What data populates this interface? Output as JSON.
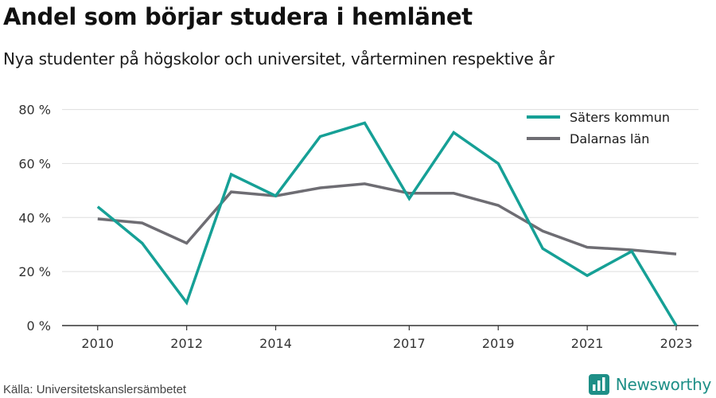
{
  "header": {
    "title": "Andel som börjar studera i hemlänet",
    "subtitle": "Nya studenter på högskolor och universitet, vårterminen respektive år"
  },
  "footer": {
    "source": "Källa: Universitetskanslersämbetet",
    "brand": "Newsworthy",
    "brand_icon": "bar-chart-logo-icon"
  },
  "colors": {
    "series_1": "#16a096",
    "series_2": "#6e6d73",
    "grid": "#dedede",
    "axis": "#333333",
    "brand": "#1e8f87"
  },
  "chart_data": {
    "type": "line",
    "x": [
      2010,
      2011,
      2012,
      2013,
      2014,
      2015,
      2016,
      2017,
      2018,
      2019,
      2020,
      2021,
      2022,
      2023
    ],
    "x_tick_labels": [
      "2010",
      "2012",
      "2014",
      "2017",
      "2019",
      "2021",
      "2023"
    ],
    "y_tick_labels": [
      "0 %",
      "20 %",
      "40 %",
      "60 %",
      "80 %"
    ],
    "y_ticks": [
      0,
      20,
      40,
      60,
      80
    ],
    "ylim": [
      0,
      84
    ],
    "xlim": [
      2009.2,
      2023.5
    ],
    "grid": "horizontal",
    "legend_position": "top-right",
    "series": [
      {
        "name": "Säters kommun",
        "color": "#16a096",
        "values": [
          44,
          30.5,
          8.5,
          56,
          48,
          70,
          75,
          47,
          71.5,
          60,
          28.5,
          18.5,
          27.5,
          0
        ]
      },
      {
        "name": "Dalarnas län",
        "color": "#6e6d73",
        "values": [
          39.5,
          38,
          30.5,
          49.5,
          48,
          51,
          52.5,
          49,
          49,
          44.5,
          35,
          29,
          28,
          26.5
        ]
      }
    ]
  }
}
